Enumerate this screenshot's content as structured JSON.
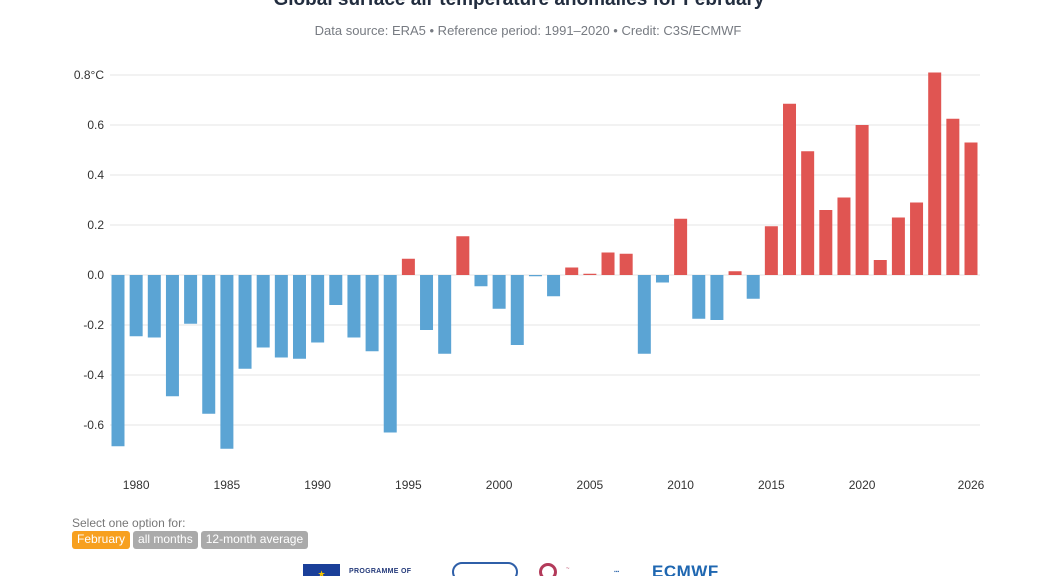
{
  "chart_data": {
    "type": "bar",
    "title": "Global surface air temperature anomalies for February",
    "subtitle": "Data source: ERA5 • Reference period: 1991–2020 • Credit: C3S/ECMWF",
    "xlabel": "",
    "ylabel": "",
    "ylim": [
      -0.7,
      0.8
    ],
    "y_ticks": [
      {
        "value": 0.8,
        "label": "0.8°C"
      },
      {
        "value": 0.6,
        "label": "0.6"
      },
      {
        "value": 0.4,
        "label": "0.4"
      },
      {
        "value": 0.2,
        "label": "0.2"
      },
      {
        "value": 0.0,
        "label": "0.0"
      },
      {
        "value": -0.2,
        "label": "-0.2"
      },
      {
        "value": -0.4,
        "label": "-0.4"
      },
      {
        "value": -0.6,
        "label": "-0.6"
      }
    ],
    "x_ticks": [
      1980,
      1985,
      1990,
      1995,
      2000,
      2005,
      2010,
      2015,
      2020,
      2026
    ],
    "grid": true,
    "positive_color": "#e05552",
    "negative_color": "#5ba4d4",
    "years": [
      1979,
      1980,
      1981,
      1982,
      1983,
      1984,
      1985,
      1986,
      1987,
      1988,
      1989,
      1990,
      1991,
      1992,
      1993,
      1994,
      1995,
      1996,
      1997,
      1998,
      1999,
      2000,
      2001,
      2002,
      2003,
      2004,
      2005,
      2006,
      2007,
      2008,
      2009,
      2010,
      2011,
      2012,
      2013,
      2014,
      2015,
      2016,
      2017,
      2018,
      2019,
      2020,
      2021,
      2022,
      2023,
      2024,
      2025,
      2026
    ],
    "values": [
      -0.685,
      -0.245,
      -0.25,
      -0.485,
      -0.195,
      -0.555,
      -0.695,
      -0.375,
      -0.29,
      -0.33,
      -0.335,
      -0.27,
      -0.12,
      -0.25,
      -0.305,
      -0.63,
      0.065,
      -0.22,
      -0.315,
      0.155,
      -0.045,
      -0.135,
      -0.28,
      -0.005,
      -0.085,
      0.03,
      0.005,
      0.09,
      0.085,
      -0.315,
      -0.03,
      0.225,
      -0.175,
      -0.18,
      0.015,
      -0.095,
      0.195,
      0.685,
      0.495,
      0.26,
      0.31,
      0.6,
      0.06,
      0.23,
      0.29,
      0.81,
      0.625,
      0.53
    ]
  },
  "options": {
    "label": "Select one option for:",
    "items": [
      {
        "label": "February",
        "active": true
      },
      {
        "label": "all months",
        "active": false
      },
      {
        "label": "12-month average",
        "active": false
      }
    ]
  },
  "logos": {
    "eu_programme": "PROGRAMME OF",
    "ecmwf": "ECMWF"
  }
}
